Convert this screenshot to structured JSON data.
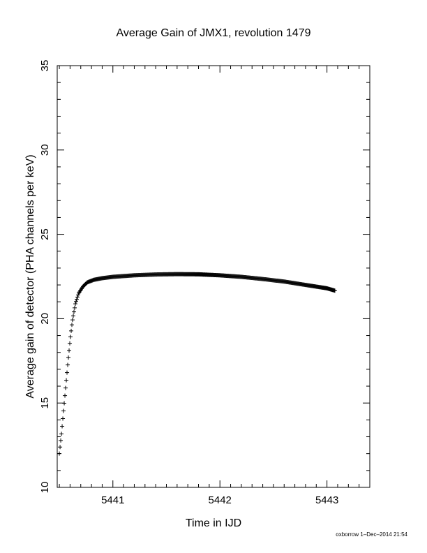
{
  "chart_data": {
    "type": "scatter",
    "title": "Average Gain of JMX1, revolution 1479",
    "xlabel": "Time in IJD",
    "ylabel": "Average gain of detector (PHA channels per keV)",
    "xlim": [
      5440.48,
      5443.4
    ],
    "ylim": [
      10,
      35
    ],
    "xticks": [
      5441,
      5442,
      5443
    ],
    "yticks": [
      10,
      15,
      20,
      25,
      30,
      35
    ],
    "marker": "plus",
    "marker_color": "#000000",
    "grid": false,
    "footer": "oxborrow 1–Dec–2014 21:54",
    "curve_points": [
      {
        "x": 5440.5,
        "y": 12.0
      },
      {
        "x": 5440.52,
        "y": 13.2
      },
      {
        "x": 5440.54,
        "y": 14.6
      },
      {
        "x": 5440.56,
        "y": 16.0
      },
      {
        "x": 5440.58,
        "y": 17.4
      },
      {
        "x": 5440.6,
        "y": 18.7
      },
      {
        "x": 5440.62,
        "y": 19.8
      },
      {
        "x": 5440.65,
        "y": 20.9
      },
      {
        "x": 5440.68,
        "y": 21.5
      },
      {
        "x": 5440.72,
        "y": 21.9
      },
      {
        "x": 5440.76,
        "y": 22.15
      },
      {
        "x": 5440.82,
        "y": 22.3
      },
      {
        "x": 5440.9,
        "y": 22.4
      },
      {
        "x": 5441.0,
        "y": 22.48
      },
      {
        "x": 5441.2,
        "y": 22.57
      },
      {
        "x": 5441.4,
        "y": 22.62
      },
      {
        "x": 5441.6,
        "y": 22.64
      },
      {
        "x": 5441.8,
        "y": 22.63
      },
      {
        "x": 5442.0,
        "y": 22.57
      },
      {
        "x": 5442.2,
        "y": 22.48
      },
      {
        "x": 5442.4,
        "y": 22.35
      },
      {
        "x": 5442.6,
        "y": 22.2
      },
      {
        "x": 5442.8,
        "y": 22.0
      },
      {
        "x": 5443.0,
        "y": 21.8
      },
      {
        "x": 5443.08,
        "y": 21.65
      }
    ],
    "sample_step": 0.0065
  }
}
